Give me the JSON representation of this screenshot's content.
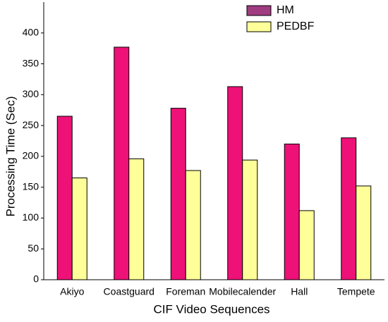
{
  "chart_data": {
    "type": "bar",
    "xlabel": "CIF Video Sequences",
    "ylabel": "Processing Time (Sec)",
    "categories": [
      "Akiyo",
      "Coastguard",
      "Foreman",
      "Mobilecalender",
      "Hall",
      "Tempete"
    ],
    "series": [
      {
        "name": "HM",
        "color": "#ee1177",
        "legend_color": "#a03c80",
        "values": [
          265,
          377,
          278,
          313,
          220,
          230
        ]
      },
      {
        "name": "PEDBF",
        "color": "#ffff99",
        "values": [
          165,
          196,
          177,
          194,
          112,
          152
        ]
      }
    ],
    "ylim": [
      0,
      450
    ],
    "yticks": [
      0,
      50,
      100,
      150,
      200,
      250,
      300,
      350,
      400
    ],
    "grid": false,
    "legend": "upper right"
  }
}
